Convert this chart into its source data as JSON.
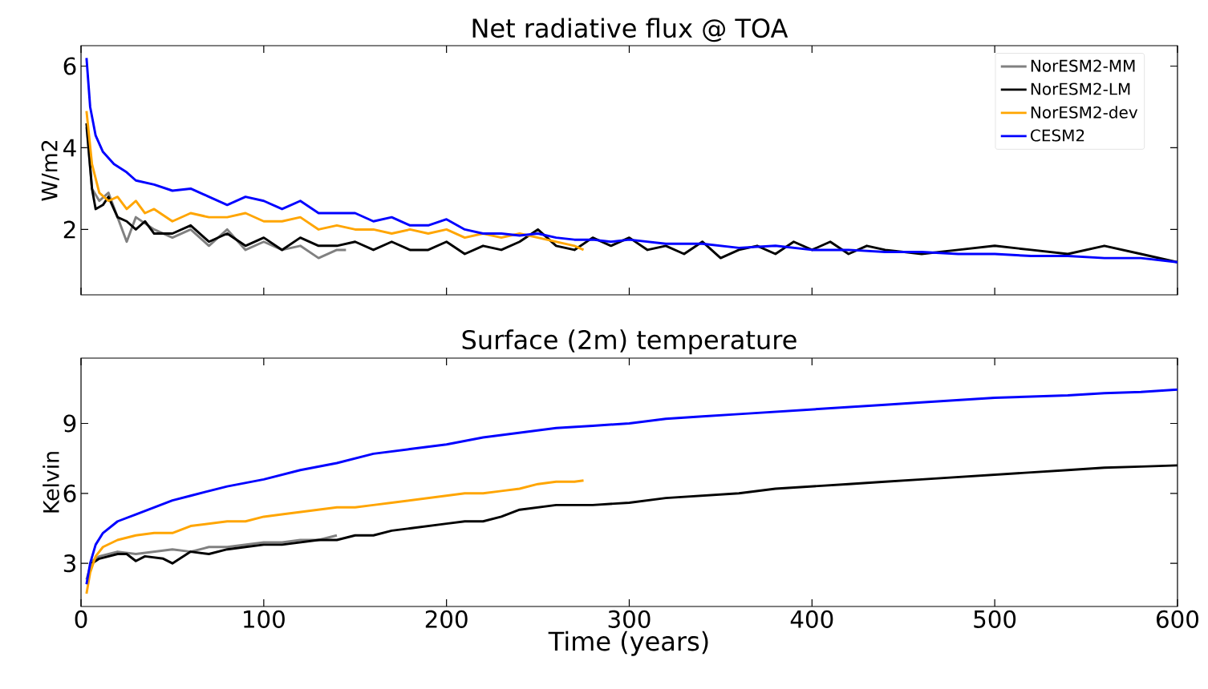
{
  "chart_data": [
    {
      "type": "line",
      "title": "Net radiative flux @ TOA",
      "ylabel": "W/m2",
      "xlim": [
        0,
        600
      ],
      "xticks": [
        0,
        100,
        200,
        300,
        400,
        500,
        600
      ],
      "ylim": [
        0.4,
        6.5
      ],
      "yticks": [
        2,
        4,
        6
      ],
      "legend": "top right",
      "tick_labels": "y",
      "series": [
        {
          "name": "NorESM2-MM",
          "color": "#808080",
          "x": [
            3,
            6,
            10,
            15,
            20,
            25,
            30,
            40,
            50,
            60,
            70,
            80,
            90,
            100,
            110,
            120,
            130,
            140,
            145
          ],
          "values": [
            4.5,
            3.0,
            2.7,
            2.9,
            2.3,
            1.7,
            2.3,
            2.0,
            1.8,
            2.0,
            1.6,
            2.0,
            1.5,
            1.7,
            1.5,
            1.6,
            1.3,
            1.5,
            1.5
          ]
        },
        {
          "name": "NorESM2-LM",
          "color": "#000000",
          "x": [
            3,
            6,
            8,
            12,
            15,
            20,
            25,
            30,
            35,
            40,
            50,
            60,
            70,
            80,
            90,
            100,
            110,
            120,
            130,
            140,
            150,
            160,
            170,
            180,
            190,
            200,
            210,
            220,
            230,
            240,
            250,
            260,
            270,
            280,
            290,
            300,
            310,
            320,
            330,
            340,
            350,
            360,
            370,
            380,
            390,
            400,
            410,
            420,
            430,
            440,
            460,
            480,
            500,
            520,
            540,
            560,
            580,
            600
          ],
          "values": [
            4.6,
            3.0,
            2.5,
            2.6,
            2.8,
            2.3,
            2.2,
            2.0,
            2.2,
            1.9,
            1.9,
            2.1,
            1.7,
            1.9,
            1.6,
            1.8,
            1.5,
            1.8,
            1.6,
            1.6,
            1.7,
            1.5,
            1.7,
            1.5,
            1.5,
            1.7,
            1.4,
            1.6,
            1.5,
            1.7,
            2.0,
            1.6,
            1.5,
            1.8,
            1.6,
            1.8,
            1.5,
            1.6,
            1.4,
            1.7,
            1.3,
            1.5,
            1.6,
            1.4,
            1.7,
            1.5,
            1.7,
            1.4,
            1.6,
            1.5,
            1.4,
            1.5,
            1.6,
            1.5,
            1.4,
            1.6,
            1.4,
            1.2
          ]
        },
        {
          "name": "NorESM2-dev",
          "color": "#ffa500",
          "x": [
            3,
            6,
            10,
            15,
            20,
            25,
            30,
            35,
            40,
            50,
            60,
            70,
            80,
            90,
            100,
            110,
            120,
            130,
            140,
            150,
            160,
            170,
            180,
            190,
            200,
            210,
            220,
            230,
            240,
            250,
            260,
            270,
            275
          ],
          "values": [
            4.9,
            3.6,
            2.9,
            2.7,
            2.8,
            2.5,
            2.7,
            2.4,
            2.5,
            2.2,
            2.4,
            2.3,
            2.3,
            2.4,
            2.2,
            2.2,
            2.3,
            2.0,
            2.1,
            2.0,
            2.0,
            1.9,
            2.0,
            1.9,
            2.0,
            1.8,
            1.9,
            1.8,
            1.9,
            1.8,
            1.7,
            1.6,
            1.5
          ]
        },
        {
          "name": "CESM2",
          "color": "#0000ff",
          "x": [
            3,
            5,
            8,
            12,
            18,
            25,
            30,
            40,
            50,
            60,
            70,
            80,
            90,
            100,
            110,
            120,
            130,
            140,
            150,
            160,
            170,
            180,
            190,
            200,
            210,
            220,
            230,
            240,
            250,
            260,
            270,
            280,
            290,
            300,
            320,
            340,
            360,
            380,
            400,
            420,
            440,
            460,
            480,
            500,
            520,
            540,
            560,
            580,
            600
          ],
          "values": [
            6.2,
            5.0,
            4.3,
            3.9,
            3.6,
            3.4,
            3.2,
            3.1,
            2.95,
            3.0,
            2.8,
            2.6,
            2.8,
            2.7,
            2.5,
            2.7,
            2.4,
            2.4,
            2.4,
            2.2,
            2.3,
            2.1,
            2.1,
            2.25,
            2.0,
            1.9,
            1.9,
            1.85,
            1.9,
            1.8,
            1.75,
            1.75,
            1.7,
            1.75,
            1.65,
            1.65,
            1.55,
            1.6,
            1.5,
            1.5,
            1.45,
            1.45,
            1.4,
            1.4,
            1.35,
            1.35,
            1.3,
            1.3,
            1.2
          ]
        }
      ]
    },
    {
      "type": "line",
      "title": "Surface (2m) temperature",
      "ylabel": "Kelvin",
      "xlabel": "Time (years)",
      "xlim": [
        0,
        600
      ],
      "xticks": [
        0,
        100,
        200,
        300,
        400,
        500,
        600
      ],
      "ylim": [
        1.15,
        11.8
      ],
      "yticks": [
        3,
        6,
        9
      ],
      "series": [
        {
          "color": "#808080",
          "x": [
            3,
            6,
            10,
            20,
            30,
            40,
            50,
            60,
            70,
            80,
            90,
            100,
            110,
            120,
            130,
            140
          ],
          "values": [
            2.3,
            3.1,
            3.3,
            3.5,
            3.4,
            3.5,
            3.6,
            3.5,
            3.7,
            3.7,
            3.8,
            3.9,
            3.9,
            4.0,
            4.0,
            4.2
          ]
        },
        {
          "color": "#000000",
          "x": [
            6,
            10,
            15,
            20,
            25,
            30,
            35,
            45,
            50,
            60,
            70,
            80,
            90,
            100,
            110,
            120,
            130,
            140,
            150,
            160,
            170,
            180,
            200,
            210,
            220,
            230,
            240,
            250,
            260,
            280,
            300,
            320,
            340,
            360,
            380,
            400,
            420,
            440,
            460,
            480,
            500,
            520,
            540,
            560,
            580,
            600
          ],
          "values": [
            3.0,
            3.2,
            3.3,
            3.4,
            3.4,
            3.1,
            3.3,
            3.2,
            3.0,
            3.5,
            3.4,
            3.6,
            3.7,
            3.8,
            3.8,
            3.9,
            4.0,
            4.0,
            4.2,
            4.2,
            4.4,
            4.5,
            4.7,
            4.8,
            4.8,
            5.0,
            5.3,
            5.4,
            5.5,
            5.5,
            5.6,
            5.8,
            5.9,
            6.0,
            6.2,
            6.3,
            6.4,
            6.5,
            6.6,
            6.7,
            6.8,
            6.9,
            7.0,
            7.1,
            7.15,
            7.2
          ]
        },
        {
          "color": "#ffa500",
          "x": [
            3,
            5,
            8,
            12,
            20,
            30,
            40,
            50,
            60,
            70,
            80,
            90,
            100,
            110,
            120,
            130,
            140,
            150,
            160,
            170,
            180,
            190,
            200,
            210,
            220,
            230,
            240,
            250,
            260,
            270,
            275
          ],
          "values": [
            1.7,
            2.6,
            3.3,
            3.7,
            4.0,
            4.2,
            4.3,
            4.3,
            4.6,
            4.7,
            4.8,
            4.8,
            5.0,
            5.1,
            5.2,
            5.3,
            5.4,
            5.4,
            5.5,
            5.6,
            5.7,
            5.8,
            5.9,
            6.0,
            6.0,
            6.1,
            6.2,
            6.4,
            6.5,
            6.5,
            6.55
          ]
        },
        {
          "color": "#0000ff",
          "x": [
            3,
            5,
            8,
            12,
            20,
            30,
            40,
            50,
            60,
            80,
            100,
            120,
            140,
            160,
            180,
            200,
            220,
            240,
            260,
            280,
            300,
            320,
            340,
            360,
            380,
            400,
            420,
            440,
            460,
            480,
            500,
            520,
            540,
            560,
            580,
            600
          ],
          "values": [
            2.1,
            3.0,
            3.8,
            4.3,
            4.8,
            5.1,
            5.4,
            5.7,
            5.9,
            6.3,
            6.6,
            7.0,
            7.3,
            7.7,
            7.9,
            8.1,
            8.4,
            8.6,
            8.8,
            8.9,
            9.0,
            9.2,
            9.3,
            9.4,
            9.5,
            9.6,
            9.7,
            9.8,
            9.9,
            10.0,
            10.1,
            10.15,
            10.2,
            10.3,
            10.35,
            10.45
          ]
        }
      ]
    }
  ]
}
